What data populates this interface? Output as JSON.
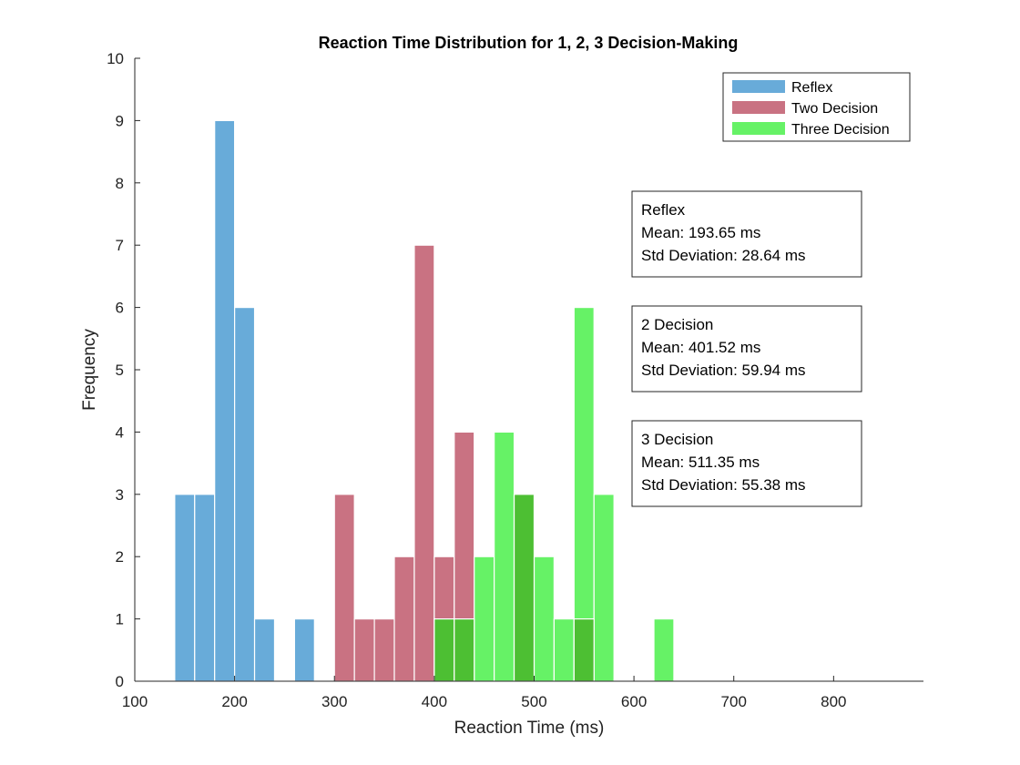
{
  "chart_data": {
    "type": "bar",
    "subtype": "overlapping-histogram",
    "title": "Reaction Time Distribution for 1, 2, 3 Decision-Making",
    "xlabel": "Reaction Time (ms)",
    "ylabel": "Frequency",
    "xlim": [
      100,
      890
    ],
    "ylim": [
      0,
      10
    ],
    "xticks": [
      100,
      200,
      300,
      400,
      500,
      600,
      700,
      800
    ],
    "yticks": [
      0,
      1,
      2,
      3,
      4,
      5,
      6,
      7,
      8,
      9,
      10
    ],
    "bin_width": 20,
    "grid": false,
    "legend_position": "top-right",
    "series": [
      {
        "name": "Reflex",
        "color": "#68abd9",
        "bins": [
          {
            "x0": 140,
            "count": 3
          },
          {
            "x0": 160,
            "count": 3
          },
          {
            "x0": 180,
            "count": 9
          },
          {
            "x0": 200,
            "count": 6
          },
          {
            "x0": 220,
            "count": 1
          },
          {
            "x0": 240,
            "count": 0
          },
          {
            "x0": 260,
            "count": 1
          },
          {
            "x0": 280,
            "count": 0
          }
        ]
      },
      {
        "name": "Two Decision",
        "color": "#c97282",
        "bins": [
          {
            "x0": 300,
            "count": 3
          },
          {
            "x0": 320,
            "count": 1
          },
          {
            "x0": 340,
            "count": 1
          },
          {
            "x0": 360,
            "count": 2
          },
          {
            "x0": 380,
            "count": 7
          },
          {
            "x0": 400,
            "count": 2
          },
          {
            "x0": 420,
            "count": 4
          },
          {
            "x0": 440,
            "count": 0
          },
          {
            "x0": 460,
            "count": 0
          },
          {
            "x0": 480,
            "count": 3
          },
          {
            "x0": 500,
            "count": 0
          },
          {
            "x0": 520,
            "count": 0
          },
          {
            "x0": 540,
            "count": 1
          },
          {
            "x0": 560,
            "count": 0
          },
          {
            "x0": 580,
            "count": 0
          }
        ]
      },
      {
        "name": "Three Decision",
        "color": "#66f266",
        "bins": [
          {
            "x0": 400,
            "count": 1
          },
          {
            "x0": 420,
            "count": 1
          },
          {
            "x0": 440,
            "count": 2
          },
          {
            "x0": 460,
            "count": 4
          },
          {
            "x0": 480,
            "count": 3
          },
          {
            "x0": 500,
            "count": 2
          },
          {
            "x0": 520,
            "count": 1
          },
          {
            "x0": 540,
            "count": 6
          },
          {
            "x0": 560,
            "count": 3
          },
          {
            "x0": 580,
            "count": 0
          },
          {
            "x0": 600,
            "count": 0
          },
          {
            "x0": 620,
            "count": 1
          }
        ]
      }
    ],
    "overlap_color": "#4dbf33",
    "annotations": [
      {
        "title": "Reflex",
        "mean": "Mean: 193.65 ms",
        "std": "Std Deviation: 28.64 ms"
      },
      {
        "title": "2 Decision",
        "mean": "Mean: 401.52 ms",
        "std": "Std Deviation: 59.94 ms"
      },
      {
        "title": "3 Decision",
        "mean": "Mean: 511.35 ms",
        "std": "Std Deviation: 55.38 ms"
      }
    ]
  }
}
